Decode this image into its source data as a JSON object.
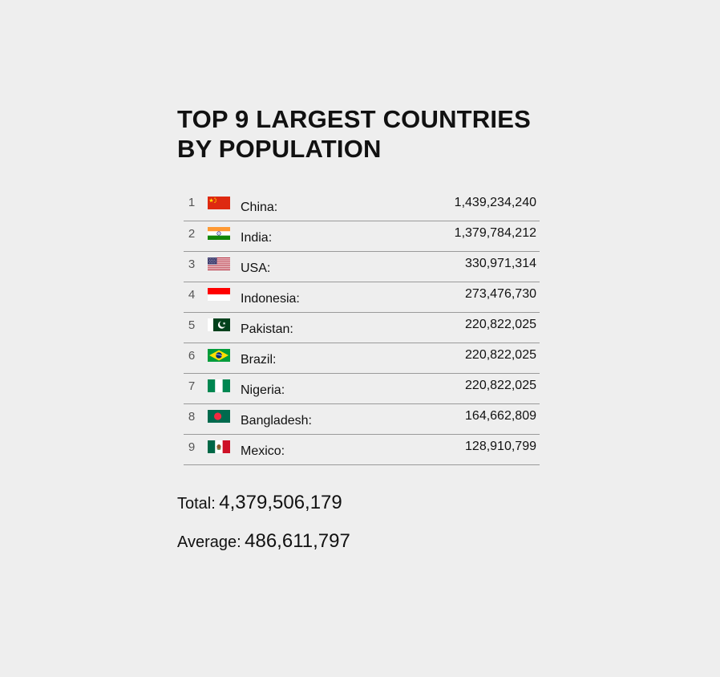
{
  "title_line1": "TOP 9 LARGEST COUNTRIES",
  "title_line2": "BY POPULATION",
  "countries": [
    {
      "rank": "1",
      "name": "China:",
      "population": "1,439,234,240",
      "flag_icon": "china-flag-icon"
    },
    {
      "rank": "2",
      "name": "India:",
      "population": "1,379,784,212",
      "flag_icon": "india-flag-icon"
    },
    {
      "rank": "3",
      "name": "USA:",
      "population": "330,971,314",
      "flag_icon": "usa-flag-icon"
    },
    {
      "rank": "4",
      "name": "Indonesia:",
      "population": "273,476,730",
      "flag_icon": "indonesia-flag-icon"
    },
    {
      "rank": "5",
      "name": "Pakistan:",
      "population": "220,822,025",
      "flag_icon": "pakistan-flag-icon"
    },
    {
      "rank": "6",
      "name": "Brazil:",
      "population": "220,822,025",
      "flag_icon": "brazil-flag-icon"
    },
    {
      "rank": "7",
      "name": "Nigeria:",
      "population": "220,822,025",
      "flag_icon": "nigeria-flag-icon"
    },
    {
      "rank": "8",
      "name": "Bangladesh:",
      "population": "164,662,809",
      "flag_icon": "bangladesh-flag-icon"
    },
    {
      "rank": "9",
      "name": "Mexico:",
      "population": "128,910,799",
      "flag_icon": "mexico-flag-icon"
    }
  ],
  "summary": {
    "total_label": "Total:",
    "total_value": "4,379,506,179",
    "average_label": "Average:",
    "average_value": "486,611,797"
  }
}
